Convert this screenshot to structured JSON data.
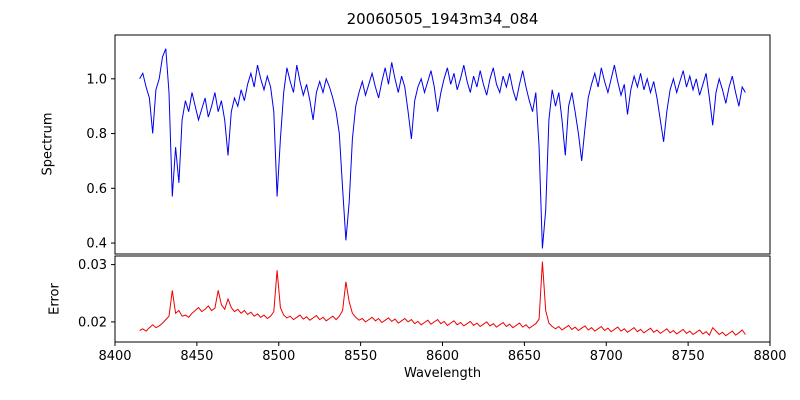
{
  "chart_data": {
    "type": "line",
    "title": "20060505_1943m34_084",
    "xlabel": "Wavelength",
    "x_range": [
      8400,
      8800
    ],
    "x_ticks": [
      8400,
      8450,
      8500,
      8550,
      8600,
      8650,
      8700,
      8750,
      8800
    ],
    "grid": false,
    "legend": "none",
    "panels": [
      {
        "name": "spectrum",
        "ylabel": "Spectrum",
        "color": "#0000ee",
        "ylim": [
          0.36,
          1.16
        ],
        "y_tick_values": [
          0.4,
          0.6,
          0.8,
          1.0
        ],
        "y_tick_labels": [
          "0.4",
          "0.6",
          "0.8",
          "1.0"
        ],
        "x_start": 8415,
        "x_step": 2,
        "y": [
          1.0,
          1.02,
          0.97,
          0.93,
          0.8,
          0.96,
          1.0,
          1.08,
          1.11,
          0.95,
          0.57,
          0.75,
          0.62,
          0.85,
          0.92,
          0.88,
          0.95,
          0.9,
          0.85,
          0.89,
          0.93,
          0.86,
          0.9,
          0.95,
          0.88,
          0.92,
          0.85,
          0.72,
          0.88,
          0.93,
          0.9,
          0.96,
          0.92,
          0.98,
          1.02,
          0.97,
          1.05,
          1.0,
          0.96,
          1.01,
          0.97,
          0.88,
          0.57,
          0.78,
          0.95,
          1.04,
          0.99,
          0.95,
          1.05,
          0.99,
          0.94,
          0.98,
          0.92,
          0.85,
          0.95,
          0.99,
          0.95,
          1.0,
          0.97,
          0.93,
          0.88,
          0.8,
          0.6,
          0.41,
          0.55,
          0.78,
          0.9,
          0.95,
          0.99,
          0.94,
          0.98,
          1.02,
          0.97,
          0.93,
          0.99,
          1.04,
          0.98,
          1.06,
          1.0,
          0.95,
          1.01,
          0.97,
          0.88,
          0.78,
          0.92,
          0.97,
          1.0,
          0.95,
          0.99,
          1.03,
          0.97,
          0.88,
          0.95,
          1.0,
          1.04,
          0.98,
          1.02,
          0.96,
          1.0,
          1.05,
          0.99,
          0.95,
          1.01,
          0.97,
          1.03,
          0.98,
          0.94,
          1.0,
          1.04,
          0.98,
          0.95,
          1.01,
          0.97,
          1.02,
          0.96,
          0.92,
          0.98,
          1.03,
          0.97,
          0.92,
          0.88,
          0.95,
          0.75,
          0.38,
          0.52,
          0.85,
          0.96,
          0.9,
          0.95,
          0.85,
          0.72,
          0.9,
          0.95,
          0.88,
          0.8,
          0.7,
          0.82,
          0.93,
          0.98,
          1.02,
          0.97,
          1.04,
          0.99,
          0.95,
          1.0,
          1.05,
          0.99,
          0.94,
          0.98,
          0.87,
          0.96,
          1.01,
          0.97,
          1.02,
          0.96,
          1.0,
          0.95,
          0.99,
          0.93,
          0.85,
          0.77,
          0.88,
          0.96,
          1.0,
          0.95,
          0.99,
          1.03,
          0.97,
          1.01,
          0.96,
          1.0,
          0.94,
          0.98,
          1.02,
          0.93,
          0.83,
          0.95,
          1.0,
          0.96,
          0.91,
          0.97,
          1.01,
          0.95,
          0.9,
          0.97,
          0.95
        ]
      },
      {
        "name": "error",
        "ylabel": "Error",
        "color": "#ee0000",
        "ylim": [
          0.0165,
          0.0315
        ],
        "y_tick_values": [
          0.02,
          0.03
        ],
        "y_tick_labels": [
          "0.02",
          "0.03"
        ],
        "x_start": 8415,
        "x_step": 2,
        "y": [
          0.0185,
          0.0188,
          0.0184,
          0.019,
          0.0195,
          0.019,
          0.0193,
          0.0198,
          0.0204,
          0.021,
          0.0255,
          0.0215,
          0.022,
          0.021,
          0.0212,
          0.0208,
          0.0215,
          0.022,
          0.0225,
          0.0218,
          0.0222,
          0.0228,
          0.022,
          0.0224,
          0.0255,
          0.023,
          0.0222,
          0.024,
          0.0225,
          0.0218,
          0.0222,
          0.0215,
          0.022,
          0.0213,
          0.0217,
          0.021,
          0.0214,
          0.0208,
          0.0212,
          0.0206,
          0.021,
          0.0218,
          0.029,
          0.0225,
          0.0212,
          0.0207,
          0.021,
          0.0204,
          0.0208,
          0.0212,
          0.0205,
          0.0209,
          0.0203,
          0.0207,
          0.0211,
          0.0204,
          0.0208,
          0.0202,
          0.0206,
          0.021,
          0.0204,
          0.021,
          0.022,
          0.027,
          0.0235,
          0.0215,
          0.0208,
          0.0203,
          0.0206,
          0.02,
          0.0204,
          0.0208,
          0.0202,
          0.0206,
          0.0199,
          0.0203,
          0.0207,
          0.0201,
          0.0205,
          0.0198,
          0.0202,
          0.0206,
          0.02,
          0.0204,
          0.0197,
          0.0201,
          0.0195,
          0.0199,
          0.0203,
          0.0196,
          0.02,
          0.0204,
          0.0197,
          0.0201,
          0.0194,
          0.0198,
          0.0202,
          0.0195,
          0.0199,
          0.0193,
          0.0197,
          0.0201,
          0.0194,
          0.0198,
          0.0192,
          0.0196,
          0.02,
          0.0193,
          0.0197,
          0.0191,
          0.0195,
          0.0199,
          0.0192,
          0.0196,
          0.019,
          0.0194,
          0.0198,
          0.0191,
          0.0195,
          0.0189,
          0.0193,
          0.0197,
          0.0205,
          0.0305,
          0.022,
          0.0198,
          0.0192,
          0.0188,
          0.0192,
          0.0186,
          0.019,
          0.0194,
          0.0187,
          0.0191,
          0.0185,
          0.0189,
          0.0193,
          0.0186,
          0.019,
          0.0184,
          0.0188,
          0.0192,
          0.0185,
          0.0189,
          0.0183,
          0.0187,
          0.0191,
          0.0184,
          0.0188,
          0.0182,
          0.0186,
          0.019,
          0.0183,
          0.0187,
          0.0181,
          0.0185,
          0.0189,
          0.0182,
          0.0186,
          0.018,
          0.0184,
          0.0188,
          0.0181,
          0.0185,
          0.0179,
          0.0183,
          0.0187,
          0.018,
          0.0184,
          0.0178,
          0.0182,
          0.0186,
          0.0179,
          0.0183,
          0.0177,
          0.019,
          0.0184,
          0.0178,
          0.0182,
          0.0176,
          0.018,
          0.0184,
          0.0177,
          0.0181,
          0.0186,
          0.0178
        ]
      }
    ]
  }
}
